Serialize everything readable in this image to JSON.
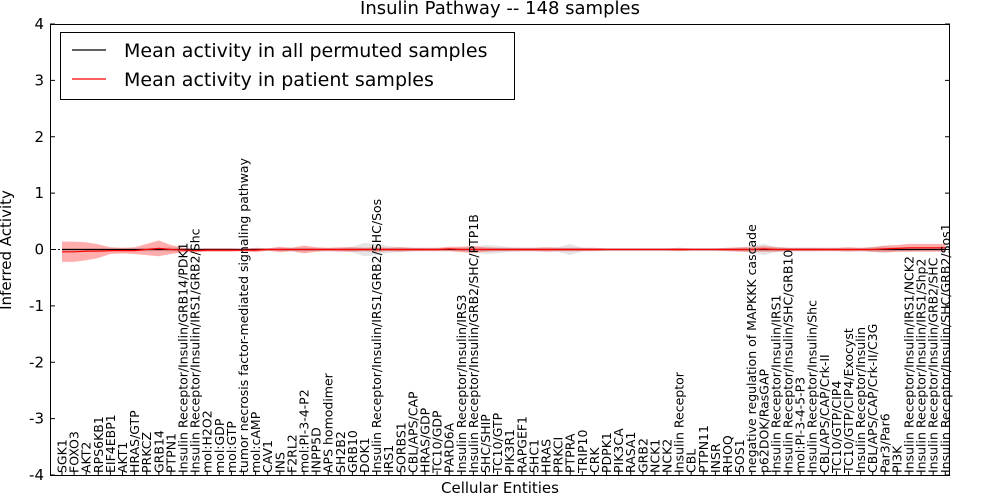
{
  "chart_data": {
    "type": "line",
    "title": "Insulin Pathway -- 148 samples",
    "xlabel": "Cellular Entities",
    "ylabel": "Inferred Activity",
    "ylim": [
      -4,
      4
    ],
    "yticks": [
      -4,
      -3,
      -2,
      -1,
      0,
      1,
      2,
      3,
      4
    ],
    "grid": false,
    "legend_position": "top-left",
    "legend": [
      {
        "label": "Mean activity in all permuted samples",
        "color": "#000000"
      },
      {
        "label": "Mean activity in patient samples",
        "color": "#ff0000"
      }
    ],
    "categories": [
      "SGK1",
      "FOXO3",
      "AKT2",
      "RPS6KB1",
      "EIF4EBP1",
      "AKT1",
      "HRAS/GTP",
      "PRKCZ",
      "GRB14",
      "PTPN1",
      "Insulin Receptor/Insulin/GRB14/PDK1",
      "Insulin Receptor/Insulin/IRS1/GRB2/Shc",
      "mol:H2O2",
      "mol:GDP",
      "mol:GTP",
      "tumor necrosis factor-mediated signaling pathway",
      "mol:cAMP",
      "CAV1",
      "INS",
      "F2RL2",
      "mol:PI-3-4-P2",
      "INPP5D",
      "APS homodimer",
      "SH2B2",
      "GRB10",
      "DOK1",
      "Insulin Receptor/Insulin/IRS1/GRB2/SHC/Sos",
      "IRS1",
      "SORBS1",
      "CBL/APS/CAP",
      "HRAS/GDP",
      "TC10/GDP",
      "PARD6A",
      "Insulin Receptor/Insulin/IRS3",
      "Insulin Receptor/Insulin/GRB2/SHC/PTP1B",
      "SHC/SHIP",
      "TC10/GTP",
      "PIK3R1",
      "RAPGEF1",
      "SHC1",
      "HRAS",
      "PRKCI",
      "PTPRA",
      "TRIP10",
      "CRK",
      "PDPK1",
      "PIK3CA",
      "RASA1",
      "GRB2",
      "NCK1",
      "NCK2",
      "Insulin Receptor",
      "CBL",
      "PTPN11",
      "INSR",
      "RHOQ",
      "SOS1",
      "negative regulation of MAPKKK cascade",
      "p62DOK/RasGAP",
      "Insulin Receptor/Insulin/IRS1",
      "Insulin Receptor/Insulin/SHC/GRB10",
      "mol:PI-3-4-5-P3",
      "Insulin Receptor/Insulin/Shc",
      "CBL/APS/CAP/Crk-II",
      "TC10/GTP/CIP4",
      "TC10/GTP/CIP4/Exocyst",
      "Insulin Receptor/Insulin",
      "CBL/APS/CAP/Crk-II/C3G",
      "Par3/Par6",
      "PI3K",
      "Insulin Receptor/Insulin/IRS1/NCK2",
      "Insulin Receptor/Insulin/IRS1/Shp2",
      "Insulin Receptor/Insulin/GRB2/SHC",
      "Insulin Receptor/Insulin/SHC/GRB2/Sos1"
    ],
    "series": [
      {
        "name": "Mean activity in all permuted samples",
        "color": "#000000",
        "values": [
          0,
          0,
          0,
          0,
          0,
          0,
          0,
          0,
          0,
          0,
          0,
          0,
          0,
          0,
          0,
          0,
          0,
          0,
          0,
          0,
          0,
          0,
          0,
          0,
          0,
          0,
          0,
          0,
          0,
          0,
          0,
          0,
          0,
          0,
          0,
          0,
          0,
          0,
          0,
          0,
          0,
          0,
          0,
          0,
          0,
          0,
          0,
          0,
          0,
          0,
          0,
          0,
          0,
          0,
          0,
          0,
          0,
          0,
          0,
          0,
          0,
          0,
          0,
          0,
          0,
          0,
          0,
          0,
          0,
          0,
          0,
          0,
          0,
          0
        ],
        "band": [
          0.02,
          0.02,
          0.02,
          0.02,
          0.02,
          0.02,
          0.02,
          0.03,
          0.03,
          0.04,
          0.03,
          0.02,
          0.02,
          0.02,
          0.02,
          0.02,
          0.02,
          0.02,
          0.02,
          0.03,
          0.03,
          0.02,
          0.02,
          0.02,
          0.05,
          0.12,
          0.1,
          0.06,
          0.04,
          0.03,
          0.02,
          0.02,
          0.02,
          0.03,
          0.05,
          0.08,
          0.07,
          0.04,
          0.03,
          0.03,
          0.03,
          0.04,
          0.1,
          0.03,
          0.02,
          0.02,
          0.02,
          0.02,
          0.02,
          0.02,
          0.02,
          0.02,
          0.02,
          0.02,
          0.02,
          0.02,
          0.03,
          0.06,
          0.1,
          0.05,
          0.03,
          0.03,
          0.03,
          0.02,
          0.02,
          0.02,
          0.02,
          0.05,
          0.06,
          0.04,
          0.03,
          0.02,
          0.02,
          0.02
        ]
      },
      {
        "name": "Mean activity in patient samples",
        "color": "#ff0000",
        "values": [
          -0.04,
          -0.04,
          -0.03,
          -0.03,
          -0.02,
          -0.02,
          -0.02,
          0.0,
          0.02,
          0.0,
          -0.01,
          -0.02,
          -0.01,
          -0.01,
          -0.01,
          -0.01,
          -0.01,
          0.0,
          0.0,
          0.0,
          0.0,
          0.0,
          0.0,
          0.0,
          0.0,
          0.0,
          0.0,
          0.0,
          0.0,
          0.0,
          0.0,
          0.0,
          0.01,
          0.0,
          0.0,
          0.0,
          0.0,
          0.0,
          0.0,
          0.0,
          0.0,
          0.0,
          0.0,
          0.0,
          0.0,
          0.0,
          0.0,
          0.0,
          0.0,
          0.0,
          0.0,
          0.0,
          0.0,
          0.0,
          0.0,
          0.0,
          0.0,
          0.0,
          0.01,
          0.0,
          0.0,
          0.0,
          0.0,
          0.0,
          0.0,
          0.0,
          0.0,
          0.0,
          0.01,
          0.02,
          0.03,
          0.03,
          0.03,
          0.03
        ],
        "band": [
          0.18,
          0.18,
          0.16,
          0.12,
          0.06,
          0.05,
          0.06,
          0.1,
          0.14,
          0.08,
          0.04,
          0.03,
          0.03,
          0.03,
          0.03,
          0.02,
          0.04,
          0.02,
          0.05,
          0.03,
          0.07,
          0.04,
          0.03,
          0.04,
          0.04,
          0.03,
          0.04,
          0.03,
          0.04,
          0.03,
          0.03,
          0.03,
          0.04,
          0.05,
          0.06,
          0.04,
          0.03,
          0.03,
          0.03,
          0.03,
          0.04,
          0.03,
          0.03,
          0.03,
          0.03,
          0.02,
          0.02,
          0.02,
          0.02,
          0.02,
          0.02,
          0.03,
          0.02,
          0.02,
          0.02,
          0.03,
          0.04,
          0.04,
          0.05,
          0.04,
          0.03,
          0.03,
          0.03,
          0.03,
          0.03,
          0.04,
          0.03,
          0.04,
          0.06,
          0.06,
          0.07,
          0.07,
          0.07,
          0.07
        ]
      }
    ]
  }
}
